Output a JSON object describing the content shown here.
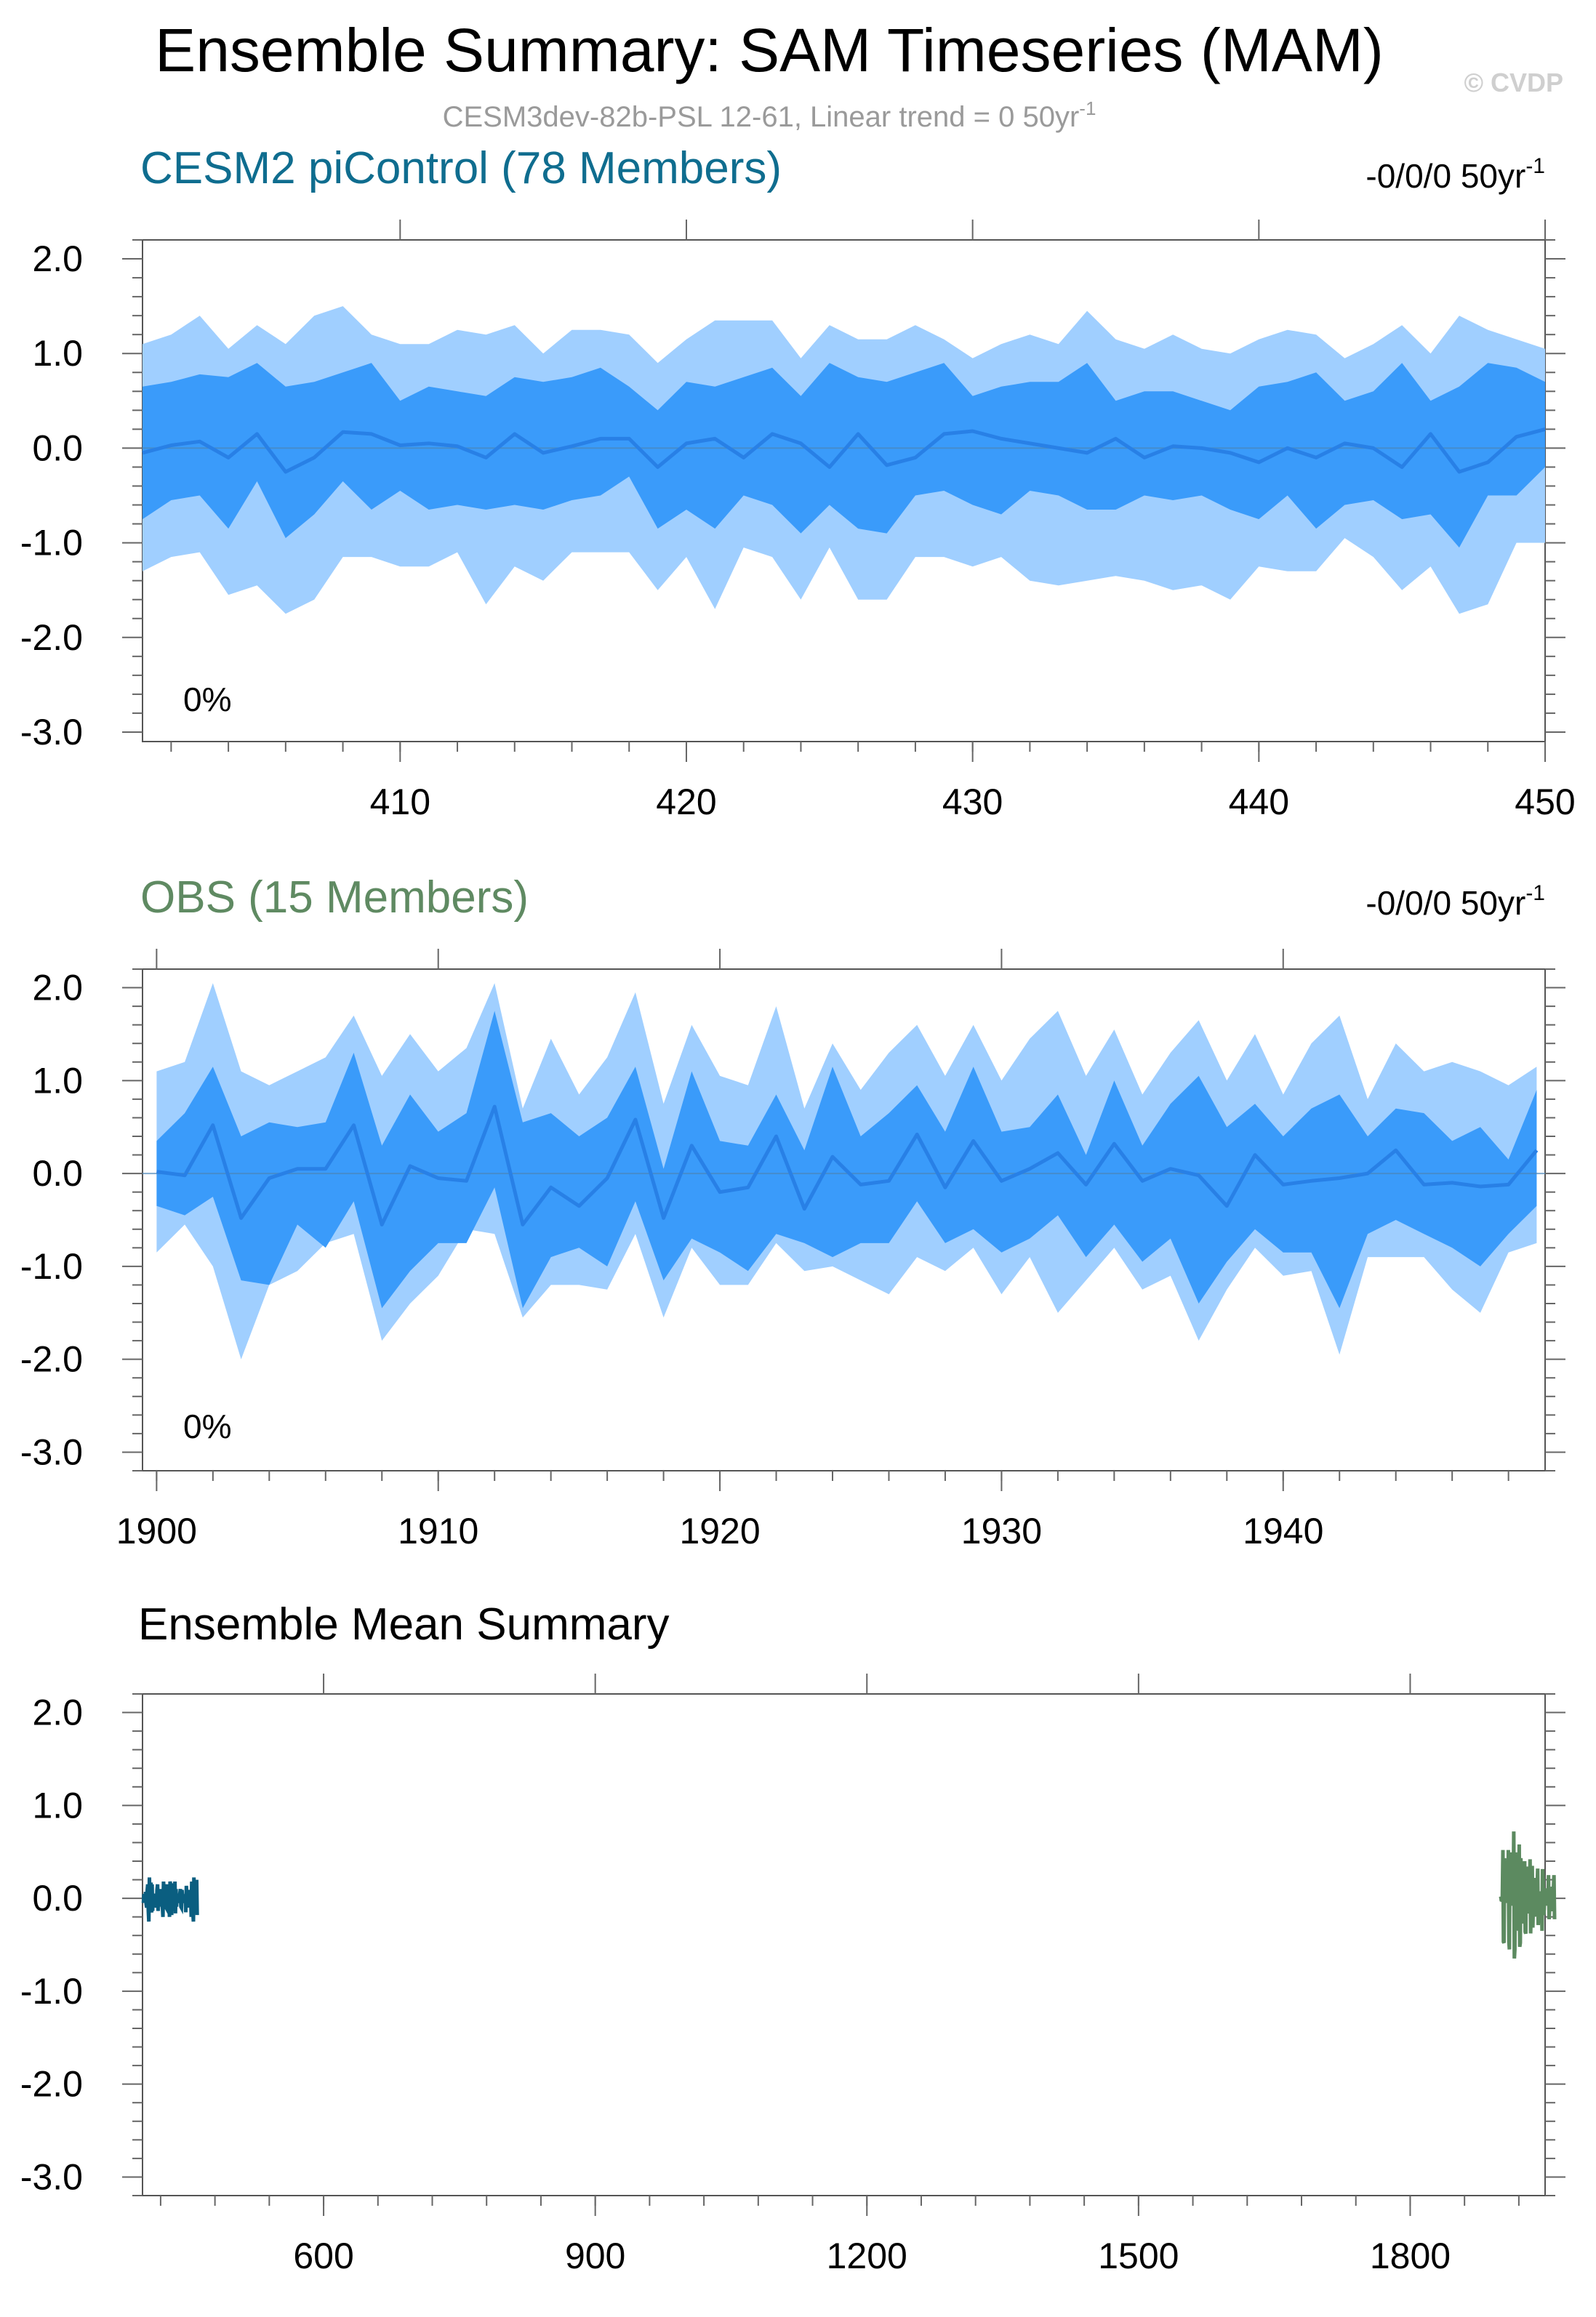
{
  "figure": {
    "title": "Ensemble Summary: SAM Timeseries (MAM)",
    "subtitle": "CESM3dev-82b-PSL 12-61, Linear trend = 0 50yr",
    "subtitle_sup": "-1",
    "watermark": "© CVDP"
  },
  "colors": {
    "band_outer": "#a0cfff",
    "band_inner": "#3a9bfa",
    "mean_line": "#2880e6",
    "cesm_title": "#0f6d8f",
    "obs_title": "#5f8a62",
    "summary_cesm": "#0a5e80",
    "summary_obs": "#5c8a60"
  },
  "chart_data": [
    {
      "type": "area",
      "title": "CESM2 piControl (78 Members)",
      "trend_label": "-0/0/0 50yr",
      "trend_sup": "-1",
      "percent_label": "0%",
      "xlim": [
        401,
        450
      ],
      "ylim": [
        -3.1,
        2.2
      ],
      "xticks": [
        410,
        420,
        430,
        440,
        450
      ],
      "xtick_labels": [
        "410",
        "420",
        "430",
        "440",
        "450"
      ],
      "yticks": [
        2.0,
        1.0,
        0.0,
        -1.0,
        -2.0,
        -3.0
      ],
      "ytick_labels": [
        "2.0",
        "1.0",
        "0.0",
        "-1.0",
        "-2.0",
        "-3.0"
      ],
      "x": [
        401,
        402,
        403,
        404,
        405,
        406,
        407,
        408,
        409,
        410,
        411,
        412,
        413,
        414,
        415,
        416,
        417,
        418,
        419,
        420,
        421,
        422,
        423,
        424,
        425,
        426,
        427,
        428,
        429,
        430,
        431,
        432,
        433,
        434,
        435,
        436,
        437,
        438,
        439,
        440,
        441,
        442,
        443,
        444,
        445,
        446,
        447,
        448,
        449,
        450
      ],
      "series": [
        {
          "name": "max",
          "values": [
            1.1,
            1.2,
            1.4,
            1.05,
            1.3,
            1.1,
            1.4,
            1.5,
            1.2,
            1.1,
            1.1,
            1.25,
            1.2,
            1.3,
            1.0,
            1.25,
            1.25,
            1.2,
            0.9,
            1.15,
            1.35,
            1.35,
            1.35,
            0.95,
            1.3,
            1.15,
            1.15,
            1.3,
            1.15,
            0.95,
            1.1,
            1.2,
            1.1,
            1.45,
            1.15,
            1.05,
            1.2,
            1.05,
            1.0,
            1.15,
            1.25,
            1.2,
            0.95,
            1.1,
            1.3,
            1.0,
            1.4,
            1.25,
            1.15,
            1.05
          ]
        },
        {
          "name": "p90",
          "values": [
            0.65,
            0.7,
            0.78,
            0.75,
            0.9,
            0.65,
            0.7,
            0.8,
            0.9,
            0.5,
            0.65,
            0.6,
            0.55,
            0.75,
            0.7,
            0.75,
            0.85,
            0.65,
            0.4,
            0.7,
            0.65,
            0.75,
            0.85,
            0.55,
            0.9,
            0.75,
            0.7,
            0.8,
            0.9,
            0.55,
            0.65,
            0.7,
            0.7,
            0.9,
            0.5,
            0.6,
            0.6,
            0.5,
            0.4,
            0.65,
            0.7,
            0.8,
            0.5,
            0.6,
            0.9,
            0.5,
            0.65,
            0.9,
            0.85,
            0.7
          ]
        },
        {
          "name": "mean",
          "values": [
            -0.05,
            0.03,
            0.07,
            -0.1,
            0.15,
            -0.25,
            -0.1,
            0.17,
            0.15,
            0.03,
            0.05,
            0.02,
            -0.1,
            0.15,
            -0.05,
            0.02,
            0.1,
            0.1,
            -0.2,
            0.05,
            0.1,
            -0.1,
            0.15,
            0.05,
            -0.2,
            0.15,
            -0.18,
            -0.1,
            0.15,
            0.18,
            0.1,
            0.05,
            0.0,
            -0.05,
            0.1,
            -0.1,
            0.02,
            0.0,
            -0.05,
            -0.15,
            0.0,
            -0.1,
            0.05,
            0.0,
            -0.2,
            0.15,
            -0.25,
            -0.15,
            0.12,
            0.2
          ]
        },
        {
          "name": "p10",
          "values": [
            -0.75,
            -0.55,
            -0.5,
            -0.85,
            -0.35,
            -0.95,
            -0.7,
            -0.35,
            -0.65,
            -0.45,
            -0.65,
            -0.6,
            -0.65,
            -0.6,
            -0.65,
            -0.55,
            -0.5,
            -0.3,
            -0.85,
            -0.65,
            -0.85,
            -0.5,
            -0.6,
            -0.9,
            -0.6,
            -0.85,
            -0.9,
            -0.5,
            -0.45,
            -0.6,
            -0.7,
            -0.45,
            -0.5,
            -0.65,
            -0.65,
            -0.5,
            -0.55,
            -0.5,
            -0.65,
            -0.75,
            -0.5,
            -0.85,
            -0.6,
            -0.55,
            -0.75,
            -0.7,
            -1.05,
            -0.5,
            -0.5,
            -0.2
          ]
        },
        {
          "name": "min",
          "values": [
            -1.3,
            -1.15,
            -1.1,
            -1.55,
            -1.45,
            -1.75,
            -1.6,
            -1.15,
            -1.15,
            -1.25,
            -1.25,
            -1.1,
            -1.65,
            -1.25,
            -1.4,
            -1.1,
            -1.1,
            -1.1,
            -1.5,
            -1.15,
            -1.7,
            -1.05,
            -1.15,
            -1.6,
            -1.05,
            -1.6,
            -1.6,
            -1.15,
            -1.15,
            -1.25,
            -1.15,
            -1.4,
            -1.45,
            -1.4,
            -1.35,
            -1.4,
            -1.5,
            -1.45,
            -1.6,
            -1.25,
            -1.3,
            -1.3,
            -0.95,
            -1.15,
            -1.5,
            -1.25,
            -1.75,
            -1.65,
            -1.0,
            -1.0
          ]
        }
      ]
    },
    {
      "type": "area",
      "title": "OBS (15 Members)",
      "trend_label": "-0/0/0 50yr",
      "trend_sup": "-1",
      "percent_label": "0%",
      "xlim": [
        1899.5,
        1949.3
      ],
      "ylim": [
        -3.2,
        2.2
      ],
      "xticks": [
        1900,
        1910,
        1920,
        1930,
        1940
      ],
      "xtick_labels": [
        "1900",
        "1910",
        "1920",
        "1930",
        "1940"
      ],
      "yticks": [
        2.0,
        1.0,
        0.0,
        -1.0,
        -2.0,
        -3.0
      ],
      "ytick_labels": [
        "2.0",
        "1.0",
        "0.0",
        "-1.0",
        "-2.0",
        "-3.0"
      ],
      "x": [
        1900,
        1901,
        1902,
        1903,
        1904,
        1905,
        1906,
        1907,
        1908,
        1909,
        1910,
        1911,
        1912,
        1913,
        1914,
        1915,
        1916,
        1917,
        1918,
        1919,
        1920,
        1921,
        1922,
        1923,
        1924,
        1925,
        1926,
        1927,
        1928,
        1929,
        1930,
        1931,
        1932,
        1933,
        1934,
        1935,
        1936,
        1937,
        1938,
        1939,
        1940,
        1941,
        1942,
        1943,
        1944,
        1945,
        1946,
        1947,
        1948,
        1949
      ],
      "series": [
        {
          "name": "max",
          "values": [
            1.1,
            1.2,
            2.05,
            1.1,
            0.95,
            1.1,
            1.25,
            1.7,
            1.05,
            1.5,
            1.1,
            1.35,
            2.05,
            0.7,
            1.45,
            0.85,
            1.25,
            1.95,
            0.75,
            1.6,
            1.05,
            0.95,
            1.8,
            0.7,
            1.4,
            0.9,
            1.3,
            1.6,
            1.05,
            1.6,
            1.0,
            1.45,
            1.75,
            1.05,
            1.55,
            0.85,
            1.3,
            1.65,
            1.0,
            1.5,
            0.85,
            1.4,
            1.7,
            0.8,
            1.4,
            1.1,
            1.2,
            1.1,
            0.95,
            1.15
          ]
        },
        {
          "name": "p90",
          "values": [
            0.35,
            0.65,
            1.15,
            0.4,
            0.55,
            0.5,
            0.55,
            1.3,
            0.3,
            0.85,
            0.45,
            0.65,
            1.75,
            0.55,
            0.65,
            0.4,
            0.6,
            1.15,
            0.05,
            1.1,
            0.35,
            0.3,
            0.85,
            0.25,
            1.15,
            0.4,
            0.65,
            0.95,
            0.45,
            1.15,
            0.45,
            0.5,
            0.85,
            0.2,
            1.0,
            0.3,
            0.75,
            1.05,
            0.5,
            0.75,
            0.4,
            0.7,
            0.85,
            0.4,
            0.7,
            0.65,
            0.35,
            0.5,
            0.15,
            0.9
          ]
        },
        {
          "name": "mean",
          "values": [
            0.02,
            -0.02,
            0.52,
            -0.48,
            -0.05,
            0.05,
            0.05,
            0.52,
            -0.55,
            0.08,
            -0.05,
            -0.08,
            0.72,
            -0.55,
            -0.15,
            -0.35,
            -0.05,
            0.58,
            -0.48,
            0.3,
            -0.2,
            -0.15,
            0.4,
            -0.38,
            0.18,
            -0.12,
            -0.08,
            0.42,
            -0.15,
            0.35,
            -0.08,
            0.05,
            0.22,
            -0.12,
            0.32,
            -0.08,
            0.05,
            -0.02,
            -0.35,
            0.2,
            -0.12,
            -0.08,
            -0.05,
            0.0,
            0.25,
            -0.12,
            -0.1,
            -0.14,
            -0.12,
            0.25
          ]
        },
        {
          "name": "p10",
          "values": [
            -0.35,
            -0.45,
            -0.25,
            -1.15,
            -1.2,
            -0.55,
            -0.8,
            -0.3,
            -1.45,
            -1.05,
            -0.75,
            -0.75,
            -0.15,
            -1.45,
            -0.9,
            -0.8,
            -1.0,
            -0.3,
            -1.15,
            -0.7,
            -0.85,
            -1.05,
            -0.65,
            -0.75,
            -0.9,
            -0.75,
            -0.75,
            -0.3,
            -0.75,
            -0.6,
            -0.85,
            -0.7,
            -0.45,
            -0.9,
            -0.55,
            -0.95,
            -0.7,
            -1.4,
            -0.95,
            -0.6,
            -0.85,
            -0.85,
            -1.45,
            -0.65,
            -0.5,
            -0.65,
            -0.8,
            -1.0,
            -0.65,
            -0.35
          ]
        },
        {
          "name": "min",
          "values": [
            -0.85,
            -0.55,
            -1.0,
            -2.0,
            -1.2,
            -1.05,
            -0.75,
            -0.65,
            -1.8,
            -1.4,
            -1.1,
            -0.6,
            -0.65,
            -1.55,
            -1.2,
            -1.2,
            -1.25,
            -0.65,
            -1.55,
            -0.8,
            -1.2,
            -1.2,
            -0.75,
            -1.05,
            -1.0,
            -1.15,
            -1.3,
            -0.9,
            -1.05,
            -0.8,
            -1.3,
            -0.9,
            -1.5,
            -1.15,
            -0.8,
            -1.25,
            -1.1,
            -1.8,
            -1.25,
            -0.8,
            -1.1,
            -1.05,
            -1.95,
            -0.9,
            -0.9,
            -0.9,
            -1.25,
            -1.5,
            -0.85,
            -0.75
          ]
        }
      ]
    },
    {
      "type": "line",
      "title": "Ensemble Mean Summary",
      "xlim": [
        400,
        1949
      ],
      "ylim": [
        -3.2,
        2.2
      ],
      "xticks": [
        600,
        900,
        1200,
        1500,
        1800
      ],
      "xtick_labels": [
        "600",
        "900",
        "1200",
        "1500",
        "1800"
      ],
      "yticks": [
        2.0,
        1.0,
        0.0,
        -1.0,
        -2.0,
        -3.0
      ],
      "ytick_labels": [
        "2.0",
        "1.0",
        "0.0",
        "-1.0",
        "-2.0",
        "-3.0"
      ],
      "series": [
        {
          "name": "CESM2 piControl",
          "x_start": 401,
          "values": [
            -0.05,
            0.03,
            0.07,
            -0.1,
            0.15,
            -0.25,
            -0.1,
            0.17,
            0.15,
            0.03,
            0.05,
            0.02,
            -0.1,
            0.15,
            -0.05,
            0.02,
            0.1,
            0.1,
            -0.2,
            0.05,
            0.1,
            -0.1,
            0.15,
            0.05,
            -0.2,
            0.15,
            -0.18,
            -0.1,
            0.15,
            0.18,
            0.1,
            0.05,
            0.0,
            -0.05,
            0.1,
            -0.1,
            0.02,
            0.0,
            -0.05,
            -0.15,
            0.0,
            -0.1,
            0.05,
            0.0,
            -0.2,
            0.15,
            -0.25,
            -0.15,
            0.12,
            0.2
          ]
        },
        {
          "name": "OBS",
          "x_start": 1900,
          "values": [
            0.02,
            -0.02,
            0.52,
            -0.48,
            -0.05,
            0.05,
            0.05,
            0.52,
            -0.55,
            0.08,
            -0.05,
            -0.08,
            0.72,
            -0.55,
            -0.15,
            -0.35,
            -0.05,
            0.58,
            -0.48,
            0.3,
            -0.2,
            -0.15,
            0.4,
            -0.38,
            0.18,
            -0.12,
            -0.08,
            0.42,
            -0.15,
            0.35,
            -0.08,
            0.05,
            0.22,
            -0.12,
            0.32,
            -0.08,
            0.05,
            -0.02,
            -0.35,
            0.2,
            -0.12,
            -0.08,
            -0.05,
            0.0,
            0.25,
            -0.12,
            -0.1,
            -0.14,
            -0.12,
            0.25
          ]
        }
      ]
    }
  ]
}
